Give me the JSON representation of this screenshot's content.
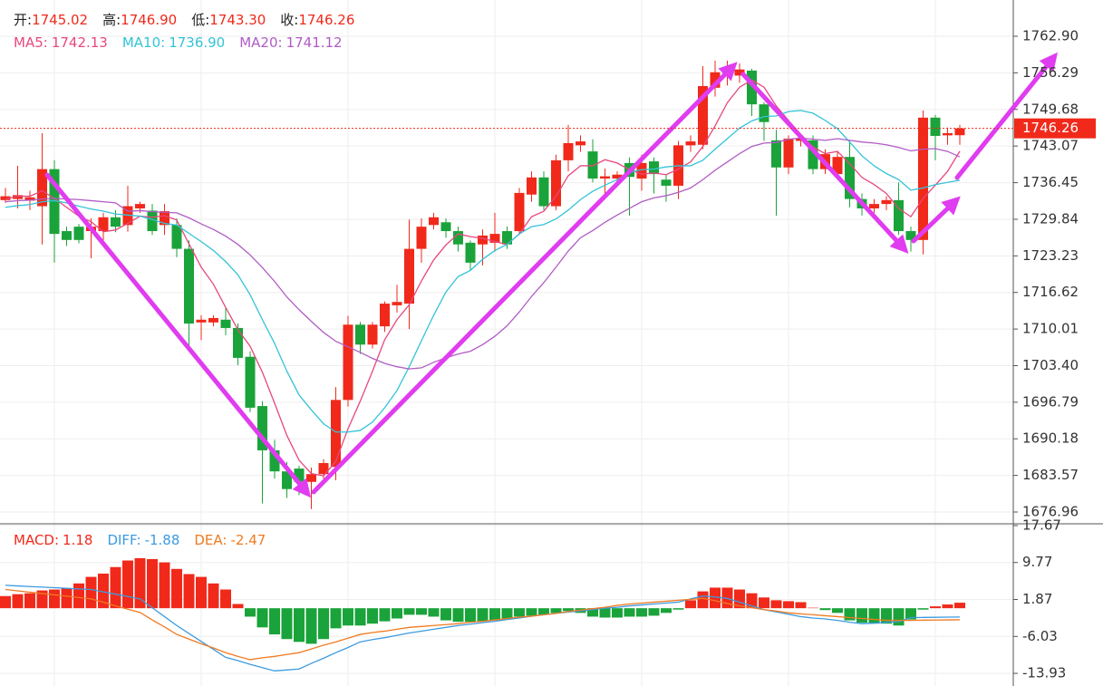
{
  "chart_data": [
    {
      "type": "candlestick",
      "header": [
        {
          "label": "开:",
          "value": "1745.02"
        },
        {
          "label": "高:",
          "value": "1746.90"
        },
        {
          "label": "低:",
          "value": "1743.30"
        },
        {
          "label": "收:",
          "value": "1746.26"
        }
      ],
      "up_color": "#f0291b",
      "down_color": "#1aa33a",
      "open": [
        1733.3,
        1733.5,
        1733.2,
        1732.2,
        1738.9,
        1727.7,
        1728.5,
        1727.7,
        1727.7,
        1730.2,
        1728.8,
        1731.8,
        1731.4,
        1728.8,
        1728.8,
        1724.5,
        1711.2,
        1711.2,
        1711.7,
        1710.2,
        1705.0,
        1696.1,
        1688.1,
        1684.3,
        1684.8,
        1682.4,
        1683.8,
        1685.1,
        1697.2,
        1710.8,
        1707.2,
        1710.5,
        1714.3,
        1714.6,
        1724.5,
        1728.8,
        1729.3,
        1727.7,
        1725.6,
        1725.3,
        1725.6,
        1727.7,
        1727.7,
        1734.3,
        1737.4,
        1732.2,
        1740.5,
        1743.2,
        1742.1,
        1737.2,
        1737.2,
        1740.0,
        1737.2,
        1740.3,
        1737.0,
        1735.9,
        1743.2,
        1743.3,
        1753.6,
        1756.2,
        1755.8,
        1756.7,
        1750.6,
        1744.1,
        1739.2,
        1744.0,
        1744.1,
        1738.9,
        1738.0,
        1741.1,
        1733.5,
        1731.8,
        1732.6,
        1733.3,
        1727.7,
        1726.1,
        1748.2,
        1745.0,
        1745.02
      ],
      "high": [
        1735.5,
        1739.5,
        1735.0,
        1745.4,
        1740.5,
        1728.5,
        1729.0,
        1730.0,
        1731.0,
        1731.5,
        1735.9,
        1733.0,
        1732.6,
        1732.6,
        1730.0,
        1726.0,
        1712.5,
        1712.5,
        1713.8,
        1711.0,
        1706.0,
        1697.0,
        1690.0,
        1686.0,
        1685.3,
        1685.0,
        1686.5,
        1699.5,
        1712.4,
        1711.3,
        1711.3,
        1715.0,
        1718.0,
        1729.8,
        1730.0,
        1731.0,
        1730.0,
        1728.5,
        1726.0,
        1728.0,
        1731.0,
        1728.5,
        1735.5,
        1738.5,
        1738.5,
        1741.5,
        1746.9,
        1745.0,
        1744.3,
        1739.0,
        1738.5,
        1741.0,
        1741.5,
        1741.0,
        1738.0,
        1744.0,
        1745.0,
        1757.5,
        1758.5,
        1758.5,
        1758.0,
        1757.0,
        1751.0,
        1746.0,
        1745.0,
        1745.0,
        1745.0,
        1742.5,
        1742.0,
        1744.0,
        1734.5,
        1733.5,
        1734.0,
        1736.5,
        1728.5,
        1749.5,
        1748.7,
        1746.4,
        1746.9
      ],
      "low": [
        1732.8,
        1731.8,
        1731.5,
        1725.3,
        1722.0,
        1725.0,
        1725.5,
        1722.8,
        1726.0,
        1727.5,
        1727.6,
        1731.0,
        1727.0,
        1727.0,
        1723.0,
        1706.4,
        1708.0,
        1710.5,
        1708.9,
        1703.5,
        1695.0,
        1678.5,
        1683.0,
        1679.5,
        1680.0,
        1677.5,
        1683.0,
        1682.7,
        1696.0,
        1705.5,
        1706.5,
        1709.5,
        1713.0,
        1710.0,
        1722.0,
        1728.0,
        1726.5,
        1724.0,
        1720.5,
        1721.5,
        1724.0,
        1724.5,
        1727.0,
        1733.0,
        1731.5,
        1731.5,
        1738.5,
        1742.0,
        1736.5,
        1734.0,
        1736.5,
        1730.5,
        1735.0,
        1734.5,
        1733.0,
        1733.5,
        1742.0,
        1742.5,
        1752.0,
        1754.0,
        1754.5,
        1748.5,
        1744.0,
        1730.5,
        1738.0,
        1743.0,
        1738.0,
        1738.0,
        1737.0,
        1732.0,
        1730.5,
        1731.0,
        1731.5,
        1727.0,
        1724.0,
        1723.5,
        1740.5,
        1743.3,
        1743.3
      ],
      "close": [
        1734.0,
        1734.2,
        1733.8,
        1738.9,
        1727.2,
        1726.1,
        1726.1,
        1728.5,
        1730.2,
        1728.5,
        1732.2,
        1732.6,
        1727.7,
        1731.3,
        1724.5,
        1711.0,
        1711.7,
        1712.0,
        1710.2,
        1704.8,
        1695.8,
        1688.1,
        1684.3,
        1681.1,
        1682.4,
        1683.8,
        1685.8,
        1697.2,
        1710.8,
        1707.2,
        1710.8,
        1714.6,
        1714.9,
        1724.5,
        1728.5,
        1730.2,
        1727.7,
        1725.3,
        1722.0,
        1726.9,
        1727.2,
        1725.3,
        1734.6,
        1737.4,
        1732.2,
        1740.5,
        1743.6,
        1743.9,
        1737.2,
        1737.6,
        1737.9,
        1737.5,
        1740.0,
        1738.0,
        1735.9,
        1743.2,
        1743.9,
        1753.9,
        1756.4,
        1757.2,
        1756.9,
        1750.6,
        1747.4,
        1739.2,
        1744.4,
        1744.4,
        1738.9,
        1741.6,
        1741.1,
        1733.5,
        1731.8,
        1732.6,
        1733.3,
        1727.7,
        1726.1,
        1748.2,
        1744.9,
        1745.4,
        1746.26
      ],
      "series": [
        {
          "name": "MA5:",
          "legend_value": "1742.13",
          "color": "#e8477f",
          "values": [
            1733.5,
            1734,
            1734,
            1735,
            1733.6,
            1732.0,
            1730.4,
            1729.4,
            1727.6,
            1727.9,
            1729.1,
            1730.4,
            1730.2,
            1730.5,
            1729.7,
            1725.4,
            1721.2,
            1718.1,
            1713.9,
            1709.9,
            1706.9,
            1702.2,
            1696.6,
            1690.8,
            1686.3,
            1683.9,
            1683.5,
            1686.1,
            1692.0,
            1697.0,
            1702.4,
            1708.1,
            1711.7,
            1714.4,
            1718.7,
            1722.5,
            1725.2,
            1727.2,
            1726.7,
            1726.4,
            1725.8,
            1725.3,
            1727.2,
            1730.3,
            1731.3,
            1734.0,
            1737.7,
            1739.5,
            1739.5,
            1740.6,
            1740.0,
            1738.8,
            1738.0,
            1738.2,
            1737.9,
            1738.9,
            1740.2,
            1743.0,
            1746.7,
            1750.9,
            1753.7,
            1755.0,
            1753.7,
            1750.3,
            1747.7,
            1745.2,
            1742.9,
            1741.7,
            1742.1,
            1739.9,
            1737.4,
            1736.1,
            1734.5,
            1731.8,
            1730.3,
            1733.6,
            1736.0,
            1738.5,
            1742.13
          ]
        },
        {
          "name": "MA10:",
          "legend_value": "1736.90",
          "color": "#33c3d8",
          "values": [
            1732.0,
            1732.3,
            1732.5,
            1733,
            1733.2,
            1732.8,
            1732.2,
            1731.7,
            1731.3,
            1730.8,
            1730.6,
            1730.4,
            1729.8,
            1729.1,
            1728.8,
            1727.3,
            1725.8,
            1724.2,
            1722.2,
            1719.8,
            1716.2,
            1711.7,
            1707.4,
            1702.4,
            1698.1,
            1695.4,
            1692.9,
            1691.4,
            1691.4,
            1691.7,
            1693.2,
            1695.8,
            1698.9,
            1703.2,
            1707.9,
            1712.5,
            1716.7,
            1719.5,
            1720.6,
            1722.6,
            1724.2,
            1725.3,
            1727.2,
            1728.5,
            1728.9,
            1729.9,
            1731.5,
            1733.4,
            1734.9,
            1736.0,
            1737.0,
            1738.3,
            1738.8,
            1738.9,
            1739.3,
            1739.5,
            1739.5,
            1740.5,
            1742.5,
            1744.4,
            1746.3,
            1747.6,
            1748.4,
            1748.5,
            1749.3,
            1749.5,
            1749.0,
            1747.7,
            1746.2,
            1743.8,
            1741.3,
            1739.5,
            1738.1,
            1737.0,
            1735.1,
            1735.5,
            1736.1,
            1736.5,
            1736.9
          ]
        },
        {
          "name": "MA20:",
          "legend_value": "1741.12",
          "color": "#b05cc4",
          "values": [
            1733.0,
            1733.2,
            1733.3,
            1733.5,
            1733.6,
            1733.5,
            1733.4,
            1733.2,
            1733.0,
            1732.8,
            1731.3,
            1731.4,
            1731.2,
            1731.1,
            1731.0,
            1730.1,
            1729.0,
            1728.0,
            1726.8,
            1725.3,
            1723.4,
            1721.1,
            1718.6,
            1715.8,
            1713.5,
            1711.4,
            1709.4,
            1707.8,
            1706.8,
            1705.8,
            1704.7,
            1703.8,
            1703.2,
            1702.8,
            1703.0,
            1704.0,
            1704.8,
            1705.5,
            1706.0,
            1707.2,
            1708.7,
            1710.6,
            1713.1,
            1715.9,
            1718.4,
            1721.2,
            1724.1,
            1726.5,
            1727.8,
            1729.3,
            1730.6,
            1731.8,
            1733.0,
            1733.7,
            1734.1,
            1734.7,
            1735.5,
            1737.0,
            1738.7,
            1740.2,
            1741.7,
            1743.0,
            1743.6,
            1743.7,
            1744.3,
            1744.5,
            1744.3,
            1744.1,
            1744.4,
            1744.1,
            1743.8,
            1743.6,
            1743.3,
            1742.8,
            1742.2,
            1742.5,
            1742.6,
            1742.1,
            1741.12
          ]
        }
      ],
      "ylim": [
        1674.83,
        1769.45
      ],
      "yticks": [
        {
          "value": 1762.9,
          "label": "1762.90"
        },
        1756.29,
        1749.68,
        1743.07,
        1736.45,
        1729.84,
        1723.23,
        1716.62,
        1710.01,
        {
          "value": 1703.4,
          "label": "1703.40"
        },
        1696.79,
        1690.18,
        1683.57,
        1676.96
      ],
      "last_price": 1746.26,
      "grid": true
    },
    {
      "type": "macd",
      "histogram": {
        "name": "MACD:",
        "legend_value": "1.18",
        "up_color": "#f0291b",
        "down_color": "#1aa33a",
        "values": [
          2.6,
          3.0,
          3.2,
          3.8,
          4.0,
          4.3,
          5.3,
          6.7,
          7.4,
          8.8,
          10.2,
          10.7,
          10.5,
          9.8,
          8.4,
          7.3,
          6.7,
          5.3,
          4.0,
          0.9,
          -1.8,
          -4.1,
          -5.6,
          -6.6,
          -7.2,
          -7.6,
          -6.6,
          -4.3,
          -3.7,
          -3.7,
          -3.3,
          -2.8,
          -2.2,
          -1.4,
          -1.4,
          -1.8,
          -2.6,
          -2.9,
          -2.9,
          -2.8,
          -2.6,
          -2.4,
          -1.8,
          -1.6,
          -1.4,
          -1.0,
          -0.6,
          -1.0,
          -1.8,
          -2.0,
          -2.0,
          -1.8,
          -1.8,
          -1.6,
          -1.0,
          -0.3,
          1.7,
          3.6,
          4.4,
          4.4,
          4.0,
          3.2,
          2.3,
          1.7,
          1.5,
          1.3,
          0.1,
          -0.4,
          -1.0,
          -2.6,
          -3.1,
          -3.3,
          -3.3,
          -3.7,
          -2.4,
          -0.3,
          0.4,
          0.8,
          1.18
        ]
      },
      "series": [
        {
          "name": "DIFF:",
          "legend_value": "-1.88",
          "color": "#3d9be0",
          "values": [
            4.9,
            4.77,
            4.64,
            4.51,
            4.39,
            4.26,
            4.13,
            4.0,
            3.5,
            3.0,
            2.5,
            2.0,
            0.1,
            -1.8,
            -3.7,
            -5.4,
            -7.1,
            -8.8,
            -10.5,
            -11.2,
            -12.0,
            -12.7,
            -13.4,
            -13.2,
            -13.0,
            -11.8,
            -10.7,
            -9.5,
            -8.4,
            -7.2,
            -6.7,
            -6.3,
            -5.8,
            -5.3,
            -4.9,
            -4.5,
            -4.1,
            -3.7,
            -3.4,
            -3.1,
            -2.8,
            -2.4,
            -2.1,
            -1.7,
            -1.4,
            -1.1,
            -0.8,
            -0.6,
            -0.3,
            0.0,
            0.2,
            0.5,
            0.7,
            0.9,
            1.1,
            1.3,
            2.0,
            2.6,
            2.4,
            2.1,
            1.3,
            0.5,
            -0.3,
            -0.8,
            -1.3,
            -1.8,
            -2.1,
            -2.3,
            -2.6,
            -3.0,
            -3.3,
            -3.2,
            -3.0,
            -2.9,
            -2.0,
            -1.97,
            -1.94,
            -1.91,
            -1.88
          ]
        },
        {
          "name": "DEA:",
          "legend_value": "-2.47",
          "color": "#f07a21",
          "values": [
            4.0,
            3.71,
            3.43,
            3.14,
            2.86,
            2.57,
            2.29,
            2.0,
            1.3,
            0.5,
            -0.2,
            -0.9,
            -2.5,
            -4.0,
            -5.6,
            -6.6,
            -7.6,
            -8.5,
            -9.5,
            -10.3,
            -11.0,
            -10.6,
            -10.3,
            -9.9,
            -9.5,
            -8.7,
            -7.9,
            -7.2,
            -6.4,
            -5.6,
            -5.2,
            -4.9,
            -4.5,
            -4.1,
            -3.9,
            -3.7,
            -3.5,
            -3.3,
            -3.0,
            -2.8,
            -2.5,
            -2.2,
            -1.9,
            -1.7,
            -1.4,
            -1.1,
            -0.7,
            -0.4,
            -0.1,
            0.2,
            0.6,
            0.9,
            1.1,
            1.3,
            1.5,
            1.7,
            1.9,
            2.1,
            1.6,
            1.0,
            0.5,
            0.1,
            -0.3,
            -0.6,
            -1.0,
            -1.2,
            -1.4,
            -1.6,
            -1.8,
            -2.0,
            -2.2,
            -2.4,
            -2.6,
            -2.6,
            -2.6,
            -2.55,
            -2.53,
            -2.5,
            -2.47
          ]
        }
      ],
      "ylim": [
        -16.63,
        18.05
      ],
      "yticks": [
        17.67,
        9.77,
        1.87,
        -6.03,
        -13.93
      ],
      "grid": true
    }
  ]
}
